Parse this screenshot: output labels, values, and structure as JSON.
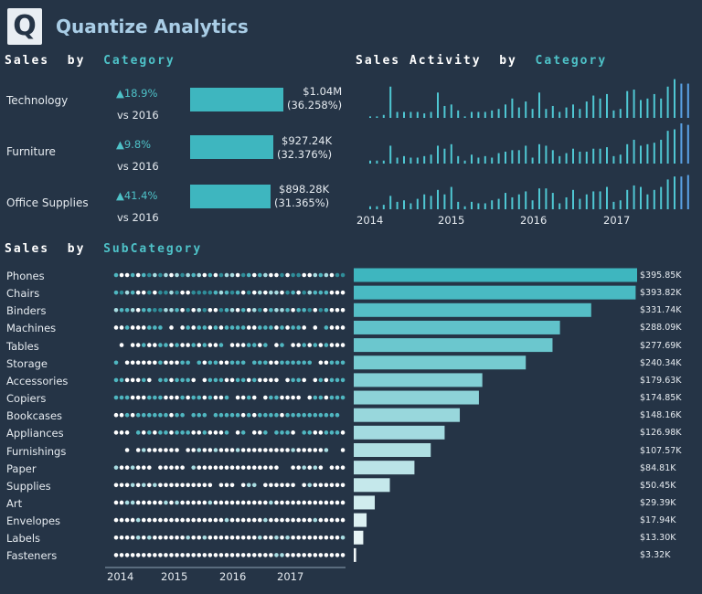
{
  "app": {
    "logo_letter": "Q",
    "title": "Quantize Analytics"
  },
  "sections": {
    "by_category": {
      "word1": "Sales",
      "word2": "by",
      "accent": "Category"
    },
    "activity": {
      "word1": "Sales Activity",
      "word2": "by",
      "accent": "Category"
    },
    "by_subcategory": {
      "word1": "Sales",
      "word2": "by",
      "accent": "SubCategory"
    }
  },
  "colors": {
    "background": "#253446",
    "accent": "#4ec2c8",
    "bar_dark": "#3eb6bf",
    "bar_light": "#e9f6f7",
    "activity_line": "#4fc7d3"
  },
  "chart_data": [
    {
      "type": "bar",
      "title": "Sales by Category",
      "categories": [
        "Technology",
        "Furniture",
        "Office Supplies"
      ],
      "values": [
        1040000,
        927240,
        898280
      ],
      "value_labels": [
        "$1.04M",
        "$927.24K",
        "$898.28K"
      ],
      "share_labels": [
        "(36.258%)",
        "(32.376%)",
        "(31.365%)"
      ],
      "growth_labels": [
        "▲18.9%",
        "▲9.8%",
        "▲41.4%"
      ],
      "comparison_label": "vs 2016"
    },
    {
      "type": "bar",
      "title": "Sales Activity by Category",
      "x_ticks": [
        "2014",
        "2015",
        "2016",
        "2017"
      ],
      "grid": false,
      "series": [
        {
          "name": "Technology",
          "values": [
            1,
            1,
            2,
            21,
            4,
            4,
            4,
            4,
            3,
            4,
            17,
            8,
            9,
            5,
            1,
            4,
            4,
            4,
            5,
            6,
            9,
            13,
            7,
            11,
            6,
            17,
            6,
            8,
            4,
            7,
            9,
            6,
            11,
            15,
            13,
            16,
            5,
            6,
            18,
            19,
            12,
            13,
            16,
            13,
            21,
            26,
            23,
            23
          ]
        },
        {
          "name": "Furniture",
          "values": [
            2,
            2,
            2,
            12,
            4,
            5,
            4,
            4,
            5,
            6,
            12,
            10,
            13,
            5,
            2,
            6,
            4,
            5,
            4,
            7,
            8,
            9,
            9,
            12,
            4,
            13,
            12,
            9,
            5,
            7,
            10,
            8,
            8,
            10,
            10,
            11,
            5,
            6,
            13,
            16,
            12,
            13,
            14,
            16,
            22,
            23,
            27,
            26
          ]
        },
        {
          "name": "Office Supplies",
          "values": [
            2,
            2,
            3,
            9,
            5,
            6,
            4,
            7,
            10,
            9,
            13,
            10,
            15,
            5,
            2,
            5,
            4,
            4,
            6,
            7,
            11,
            8,
            10,
            12,
            6,
            14,
            14,
            11,
            4,
            8,
            13,
            7,
            10,
            12,
            12,
            15,
            5,
            6,
            13,
            16,
            15,
            10,
            13,
            15,
            20,
            22,
            22,
            23
          ]
        }
      ]
    },
    {
      "type": "bar",
      "title": "Sales by SubCategory",
      "orientation": "horizontal",
      "x_ticks": [
        "2014",
        "2015",
        "2016",
        "2017"
      ],
      "categories": [
        "Phones",
        "Chairs",
        "Binders",
        "Machines",
        "Tables",
        "Storage",
        "Accessories",
        "Copiers",
        "Bookcases",
        "Appliances",
        "Furnishings",
        "Paper",
        "Supplies",
        "Art",
        "Envelopes",
        "Labels",
        "Fasteners"
      ],
      "values": [
        395850,
        393820,
        331740,
        288090,
        277690,
        240340,
        179630,
        174850,
        148160,
        126980,
        107570,
        84810,
        50450,
        29390,
        17940,
        13300,
        3320
      ],
      "value_labels": [
        "$395.85K",
        "$393.82K",
        "$331.74K",
        "$288.09K",
        "$277.69K",
        "$240.34K",
        "$179.63K",
        "$174.85K",
        "$148.16K",
        "$126.98K",
        "$107.57K",
        "$84.81K",
        "$50.45K",
        "$29.39K",
        "$17.94K",
        "$13.30K",
        "$3.32K"
      ]
    }
  ]
}
